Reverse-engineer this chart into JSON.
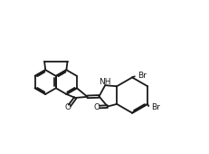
{
  "bg": "#ffffff",
  "lc": "#1a1a1a",
  "lw": 1.3,
  "fs": 6.5,
  "xlim": [
    0,
    10
  ],
  "ylim": [
    0,
    7.5
  ]
}
